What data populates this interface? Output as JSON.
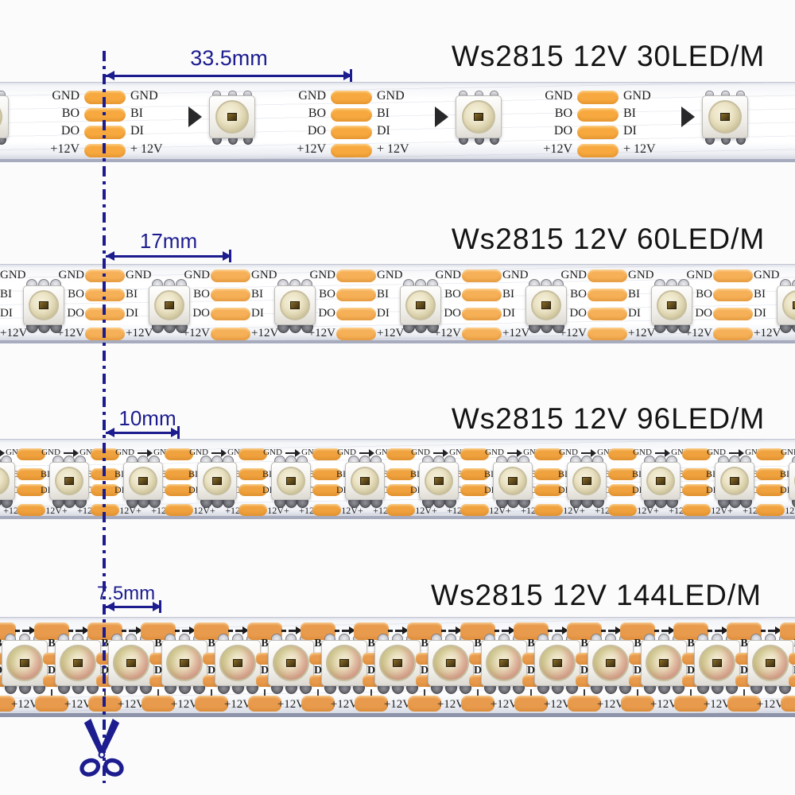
{
  "colors": {
    "pad_1": "#f7a93f",
    "pad_2": "#f6b057",
    "pad_3": "#f0a23e",
    "pad_4": "#e99b4d",
    "navy": "#1c1c8f",
    "label": "#1d1d1d"
  },
  "sections": [
    {
      "title": "Ws2815 12V 30LED/M",
      "measurement": "33.5mm",
      "labels_left": [
        "GND",
        "BO",
        "DO",
        "+12V"
      ],
      "labels_right": [
        "GND",
        "BI",
        "DI",
        "+ 12V"
      ]
    },
    {
      "title": "Ws2815 12V 60LED/M",
      "measurement": "17mm",
      "labels_left": [
        "GND",
        "BO",
        "DO",
        "+12V"
      ],
      "labels_right": [
        "GND",
        "BI",
        "DI",
        "+12V"
      ]
    },
    {
      "title": "Ws2815 12V 96LED/M",
      "measurement": "10mm",
      "top_left": "GND",
      "top_right": "GND",
      "mid_left": [
        "BI",
        "DI"
      ],
      "mid_right": [
        "BO",
        "DO"
      ],
      "bottom": [
        "12V+",
        "+12V"
      ]
    },
    {
      "title": "Ws2815 12V 144LED/M",
      "measurement": "7.5mm",
      "mid": [
        "B",
        "D"
      ],
      "bottom": "+12V"
    }
  ]
}
